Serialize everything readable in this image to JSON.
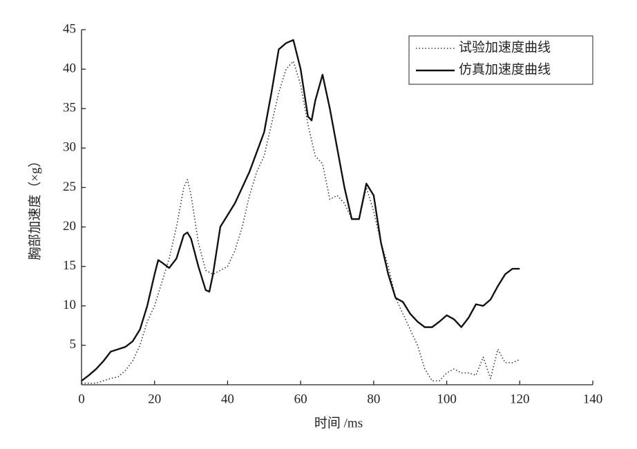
{
  "chart_data": {
    "type": "line",
    "x_label": "时间 /ms",
    "y_label": "胸部加速度（×g）",
    "xlim": [
      0,
      140
    ],
    "xticks": [
      0,
      20,
      40,
      60,
      80,
      100,
      120,
      140
    ],
    "ylim": [
      0,
      45
    ],
    "yticks": [
      5,
      10,
      15,
      20,
      25,
      30,
      35,
      40,
      45
    ],
    "legend": "upper right",
    "series": [
      {
        "name": "试验加速度曲线",
        "color": "#333333",
        "style": "dotted",
        "x": [
          0,
          4,
          8,
          10,
          12,
          14,
          16,
          18,
          20,
          22,
          24,
          26,
          28,
          29,
          30,
          32,
          34,
          36,
          38,
          40,
          42,
          44,
          46,
          48,
          50,
          52,
          54,
          56,
          58,
          60,
          62,
          64,
          66,
          68,
          70,
          72,
          74,
          76,
          78,
          80,
          82,
          84,
          86,
          88,
          90,
          92,
          94,
          96,
          98,
          100,
          102,
          104,
          106,
          108,
          110,
          112,
          114,
          116,
          118,
          120
        ],
        "values": [
          0.2,
          0.2,
          0.8,
          1,
          1.8,
          3,
          5,
          8,
          10,
          13,
          16,
          20,
          25,
          26,
          24,
          18,
          14.5,
          14,
          14.5,
          15,
          17,
          20,
          24,
          27,
          29,
          33,
          37,
          40,
          41,
          38,
          33,
          29,
          28,
          23.5,
          24,
          23,
          21,
          21,
          25,
          22,
          18,
          15,
          11,
          9,
          7,
          5,
          2,
          0.5,
          0.5,
          1.5,
          2,
          1.5,
          1.5,
          1.2,
          3.5,
          0.8,
          4.5,
          2.8,
          2.8,
          3.2
        ]
      },
      {
        "name": "仿真加速度曲线",
        "color": "#111111",
        "style": "solid",
        "x": [
          0,
          2,
          4,
          6,
          8,
          10,
          12,
          14,
          16,
          18,
          20,
          21,
          22,
          24,
          26,
          28,
          29,
          30,
          32,
          34,
          35,
          36,
          38,
          40,
          42,
          44,
          46,
          48,
          50,
          52,
          54,
          56,
          58,
          60,
          62,
          63,
          64,
          66,
          68,
          70,
          72,
          74,
          76,
          78,
          80,
          82,
          84,
          86,
          88,
          90,
          92,
          94,
          96,
          98,
          100,
          102,
          104,
          106,
          108,
          110,
          112,
          114,
          116,
          118,
          120
        ],
        "values": [
          0.5,
          1.2,
          2,
          3,
          4.2,
          4.5,
          4.8,
          5.5,
          7,
          10,
          14,
          15.8,
          15.5,
          14.8,
          16,
          19,
          19.3,
          18.5,
          15,
          12,
          11.8,
          14,
          20,
          21.5,
          23,
          25,
          27,
          29.5,
          32,
          37,
          42.5,
          43.3,
          43.7,
          40,
          34,
          33.5,
          36,
          39.3,
          35,
          30,
          25,
          21,
          21,
          25.5,
          24,
          18,
          14,
          11,
          10.5,
          9,
          8,
          7.3,
          7.3,
          8,
          8.8,
          8.3,
          7.3,
          8.5,
          10.2,
          10,
          10.8,
          12.5,
          14,
          14.7,
          14.7
        ]
      }
    ]
  }
}
